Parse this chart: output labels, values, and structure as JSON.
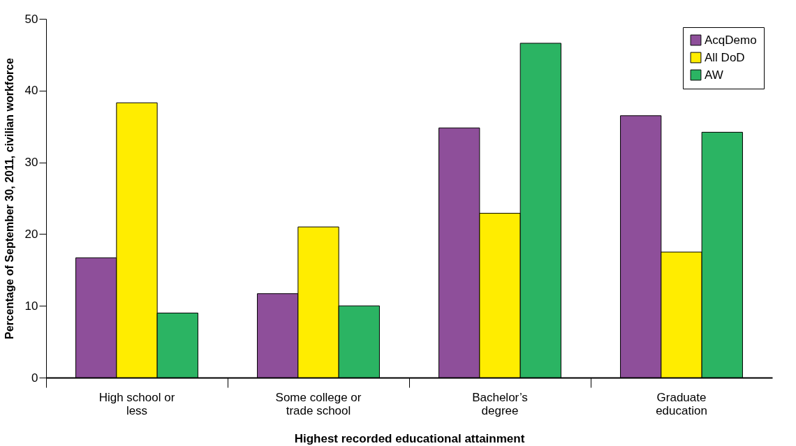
{
  "chart_data": {
    "type": "bar",
    "xlabel": "Highest recorded educational attainment",
    "ylabel": "Percentage of September 30, 2011, civilian workforce",
    "categories": [
      "High school or less",
      "Some college or trade school",
      "Bachelor’s degree",
      "Graduate education"
    ],
    "series": [
      {
        "name": "AcqDemo",
        "color": "#8e4f9a",
        "values": [
          16.7,
          11.7,
          34.8,
          36.5
        ]
      },
      {
        "name": "All DoD",
        "color": "#ffed00",
        "values": [
          38.3,
          21.0,
          22.9,
          17.5
        ]
      },
      {
        "name": "AW",
        "color": "#2bb463",
        "values": [
          9.0,
          10.0,
          46.6,
          34.2
        ]
      }
    ],
    "ylim": [
      0,
      50
    ],
    "yticks": [
      0,
      10,
      20,
      30,
      40,
      50
    ],
    "grid": false,
    "legend": "top right"
  }
}
